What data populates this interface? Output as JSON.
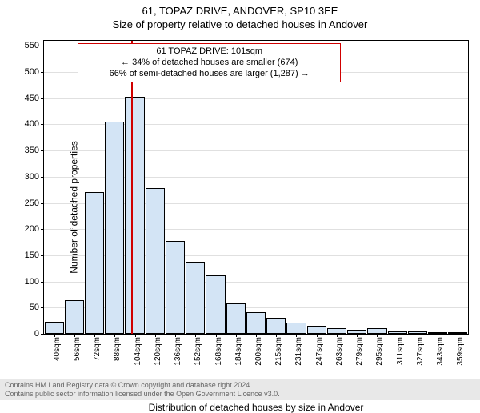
{
  "title": "61, TOPAZ DRIVE, ANDOVER, SP10 3EE",
  "subtitle": "Size of property relative to detached houses in Andover",
  "ylabel": "Number of detached properties",
  "xlabel": "Distribution of detached houses by size in Andover",
  "ylim": [
    0,
    560
  ],
  "yticks": [
    0,
    50,
    100,
    150,
    200,
    250,
    300,
    350,
    400,
    450,
    500,
    550
  ],
  "xcategories": [
    "40sqm",
    "56sqm",
    "72sqm",
    "88sqm",
    "104sqm",
    "120sqm",
    "136sqm",
    "152sqm",
    "168sqm",
    "184sqm",
    "200sqm",
    "215sqm",
    "231sqm",
    "247sqm",
    "263sqm",
    "279sqm",
    "295sqm",
    "311sqm",
    "327sqm",
    "343sqm",
    "359sqm"
  ],
  "values": [
    23,
    65,
    270,
    405,
    452,
    278,
    178,
    138,
    112,
    58,
    42,
    30,
    22,
    16,
    11,
    8,
    10,
    5,
    4,
    3,
    2
  ],
  "bar_fill": "#d3e4f5",
  "bar_border": "#000000",
  "grid_color": "#e0e0e0",
  "marker_value": "101sqm",
  "marker_color": "#d00000",
  "marker_box": {
    "line1": "61 TOPAZ DRIVE: 101sqm",
    "line2": "← 34% of detached houses are smaller (674)",
    "line3": "66% of semi-detached houses are larger (1,287) →"
  },
  "footer_line1": "Contains HM Land Registry data © Crown copyright and database right 2024.",
  "footer_line2": "Contains public sector information licensed under the Open Government Licence v3.0."
}
